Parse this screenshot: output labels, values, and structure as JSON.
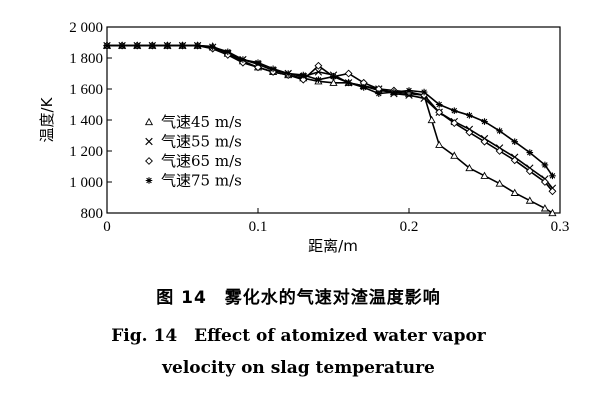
{
  "chart_data": {
    "type": "line",
    "xlabel": "距离/m",
    "ylabel": "温度/K",
    "xlim": [
      0,
      0.3
    ],
    "ylim": [
      800,
      2000
    ],
    "x_ticks": [
      0,
      0.1,
      0.2,
      0.3
    ],
    "x_tick_labels": [
      "0",
      "0.1",
      "0.2",
      "0.3"
    ],
    "y_ticks": [
      800,
      1000,
      1200,
      1400,
      1600,
      1800,
      2000
    ],
    "y_tick_labels": [
      "800",
      "1 000",
      "1 200",
      "1 400",
      "1 600",
      "1 800",
      "2 000"
    ],
    "grid": false,
    "legend_position": "left-middle",
    "series": [
      {
        "name": "气速45 m/s",
        "marker": "triangle",
        "x": [
          0,
          0.01,
          0.02,
          0.03,
          0.04,
          0.05,
          0.06,
          0.07,
          0.08,
          0.09,
          0.1,
          0.11,
          0.12,
          0.13,
          0.14,
          0.15,
          0.16,
          0.17,
          0.18,
          0.19,
          0.2,
          0.21,
          0.215,
          0.22,
          0.23,
          0.24,
          0.25,
          0.26,
          0.27,
          0.28,
          0.29,
          0.295
        ],
        "y": [
          1880,
          1880,
          1880,
          1880,
          1880,
          1880,
          1880,
          1875,
          1830,
          1780,
          1740,
          1710,
          1690,
          1670,
          1650,
          1640,
          1640,
          1620,
          1590,
          1580,
          1570,
          1560,
          1400,
          1240,
          1170,
          1090,
          1040,
          990,
          930,
          880,
          830,
          800
        ]
      },
      {
        "name": "气速55 m/s",
        "marker": "x",
        "x": [
          0,
          0.01,
          0.02,
          0.03,
          0.04,
          0.05,
          0.06,
          0.07,
          0.08,
          0.09,
          0.1,
          0.11,
          0.12,
          0.13,
          0.14,
          0.15,
          0.16,
          0.17,
          0.18,
          0.19,
          0.2,
          0.21,
          0.22,
          0.23,
          0.24,
          0.25,
          0.26,
          0.27,
          0.28,
          0.29,
          0.295
        ],
        "y": [
          1880,
          1880,
          1880,
          1880,
          1880,
          1880,
          1880,
          1870,
          1830,
          1790,
          1760,
          1720,
          1700,
          1680,
          1710,
          1690,
          1640,
          1620,
          1600,
          1570,
          1560,
          1540,
          1450,
          1390,
          1340,
          1280,
          1220,
          1160,
          1090,
          1020,
          960
        ]
      },
      {
        "name": "气速65 m/s",
        "marker": "diamond",
        "x": [
          0,
          0.01,
          0.02,
          0.03,
          0.04,
          0.05,
          0.06,
          0.07,
          0.08,
          0.09,
          0.1,
          0.11,
          0.12,
          0.13,
          0.14,
          0.15,
          0.16,
          0.17,
          0.18,
          0.19,
          0.2,
          0.21,
          0.22,
          0.23,
          0.24,
          0.25,
          0.26,
          0.27,
          0.28,
          0.29,
          0.295
        ],
        "y": [
          1880,
          1880,
          1880,
          1880,
          1880,
          1880,
          1880,
          1860,
          1820,
          1770,
          1740,
          1710,
          1690,
          1660,
          1750,
          1680,
          1700,
          1640,
          1600,
          1590,
          1580,
          1560,
          1450,
          1380,
          1320,
          1260,
          1200,
          1140,
          1070,
          1000,
          940
        ]
      },
      {
        "name": "气速75 m/s",
        "marker": "asterisk",
        "x": [
          0,
          0.01,
          0.02,
          0.03,
          0.04,
          0.05,
          0.06,
          0.07,
          0.08,
          0.09,
          0.1,
          0.11,
          0.12,
          0.13,
          0.14,
          0.15,
          0.16,
          0.17,
          0.18,
          0.19,
          0.2,
          0.21,
          0.22,
          0.23,
          0.24,
          0.25,
          0.26,
          0.27,
          0.28,
          0.29,
          0.295
        ],
        "y": [
          1880,
          1880,
          1880,
          1880,
          1880,
          1880,
          1880,
          1870,
          1840,
          1790,
          1770,
          1730,
          1700,
          1690,
          1660,
          1680,
          1640,
          1610,
          1570,
          1580,
          1590,
          1580,
          1500,
          1460,
          1430,
          1390,
          1330,
          1260,
          1190,
          1110,
          1040
        ]
      }
    ]
  },
  "caption": {
    "chinese": "图 14　雾化水的气速对渣温度影响",
    "english_line1": "Fig. 14　Effect of atomized water vapor",
    "english_line2": "velocity on slag temperature"
  }
}
